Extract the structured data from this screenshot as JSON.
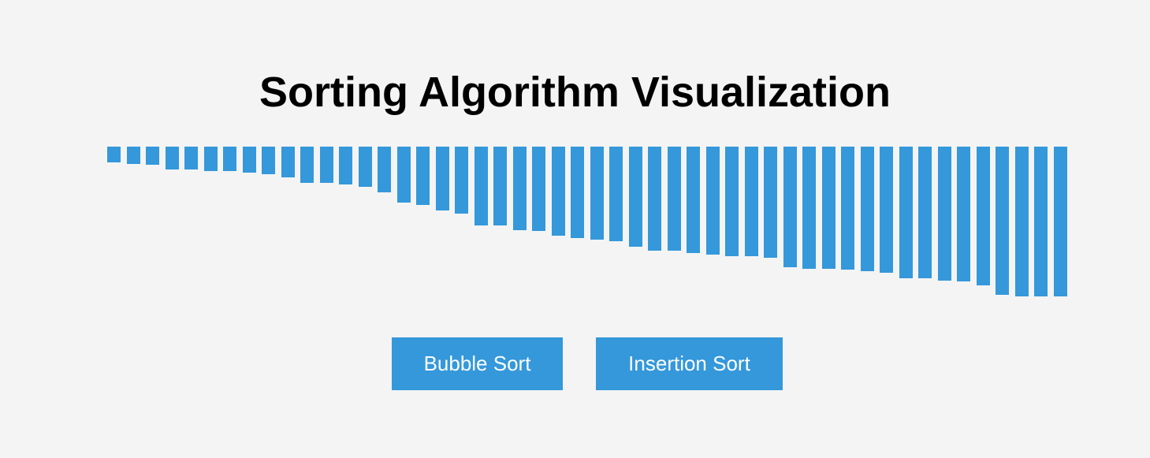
{
  "page": {
    "title": "Sorting Algorithm Visualization"
  },
  "controls": {
    "bubble_label": "Bubble Sort",
    "insertion_label": "Insertion Sort"
  },
  "colors": {
    "background": "#f4f4f4",
    "bar": "#3498db",
    "button": "#3498db",
    "button_text": "#ffffff",
    "title": "#000000"
  },
  "chart_data": {
    "type": "bar",
    "values": [
      20,
      22,
      23,
      29,
      29,
      31,
      31,
      33,
      35,
      39,
      46,
      46,
      48,
      51,
      58,
      71,
      74,
      81,
      85,
      100,
      100,
      106,
      107,
      113,
      116,
      118,
      120,
      127,
      132,
      132,
      135,
      137,
      139,
      139,
      141,
      153,
      155,
      155,
      156,
      158,
      160,
      167,
      167,
      170,
      171,
      176,
      188,
      190,
      190,
      190
    ],
    "ylim": [
      0,
      190
    ]
  }
}
